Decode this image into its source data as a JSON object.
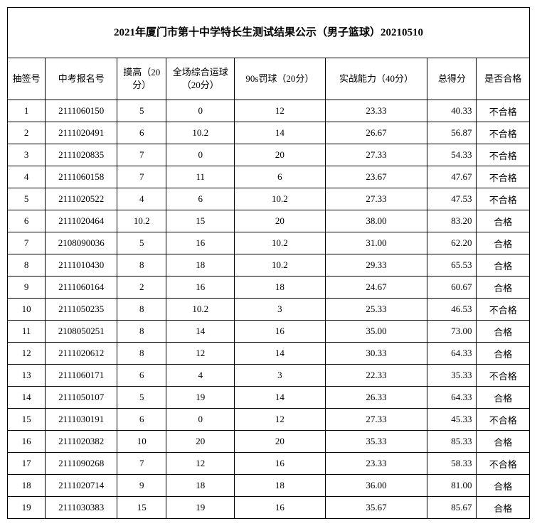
{
  "table": {
    "title": "2021年厦门市第十中学特长生测试结果公示（男子篮球）20210510",
    "columns": [
      "抽签号",
      "中考报名号",
      "摸高（20分）",
      "全场综合运球（20分）",
      "90s罚球（20分）",
      "实战能力（40分）",
      "总得分",
      "是否合格"
    ],
    "col_align": [
      "center",
      "center",
      "center",
      "center",
      "center",
      "center",
      "right",
      "center"
    ],
    "rows": [
      [
        "1",
        "2111060150",
        "5",
        "0",
        "12",
        "23.33",
        "40.33",
        "不合格"
      ],
      [
        "2",
        "2111020491",
        "6",
        "10.2",
        "14",
        "26.67",
        "56.87",
        "不合格"
      ],
      [
        "3",
        "2111020835",
        "7",
        "0",
        "20",
        "27.33",
        "54.33",
        "不合格"
      ],
      [
        "4",
        "2111060158",
        "7",
        "11",
        "6",
        "23.67",
        "47.67",
        "不合格"
      ],
      [
        "5",
        "2111020522",
        "4",
        "6",
        "10.2",
        "27.33",
        "47.53",
        "不合格"
      ],
      [
        "6",
        "2111020464",
        "10.2",
        "15",
        "20",
        "38.00",
        "83.20",
        "合格"
      ],
      [
        "7",
        "2108090036",
        "5",
        "16",
        "10.2",
        "31.00",
        "62.20",
        "合格"
      ],
      [
        "8",
        "2111010430",
        "8",
        "18",
        "10.2",
        "29.33",
        "65.53",
        "合格"
      ],
      [
        "9",
        "2111060164",
        "2",
        "16",
        "18",
        "24.67",
        "60.67",
        "合格"
      ],
      [
        "10",
        "2111050235",
        "8",
        "10.2",
        "3",
        "25.33",
        "46.53",
        "不合格"
      ],
      [
        "11",
        "2108050251",
        "8",
        "14",
        "16",
        "35.00",
        "73.00",
        "合格"
      ],
      [
        "12",
        "2111020612",
        "8",
        "12",
        "14",
        "30.33",
        "64.33",
        "合格"
      ],
      [
        "13",
        "2111060171",
        "6",
        "4",
        "3",
        "22.33",
        "35.33",
        "不合格"
      ],
      [
        "14",
        "2111050107",
        "5",
        "19",
        "14",
        "26.33",
        "64.33",
        "合格"
      ],
      [
        "15",
        "2111030191",
        "6",
        "0",
        "12",
        "27.33",
        "45.33",
        "不合格"
      ],
      [
        "16",
        "2111020382",
        "10",
        "20",
        "20",
        "35.33",
        "85.33",
        "合格"
      ],
      [
        "17",
        "2111090268",
        "7",
        "12",
        "16",
        "23.33",
        "58.33",
        "不合格"
      ],
      [
        "18",
        "2111020714",
        "9",
        "18",
        "18",
        "36.00",
        "81.00",
        "合格"
      ],
      [
        "19",
        "2111030383",
        "15",
        "19",
        "16",
        "35.67",
        "85.67",
        "合格"
      ]
    ]
  },
  "style": {
    "border_color": "#000000",
    "background_color": "#ffffff",
    "text_color": "#000000",
    "font_family": "SimSun",
    "title_fontsize": 15,
    "body_fontsize": 13
  }
}
